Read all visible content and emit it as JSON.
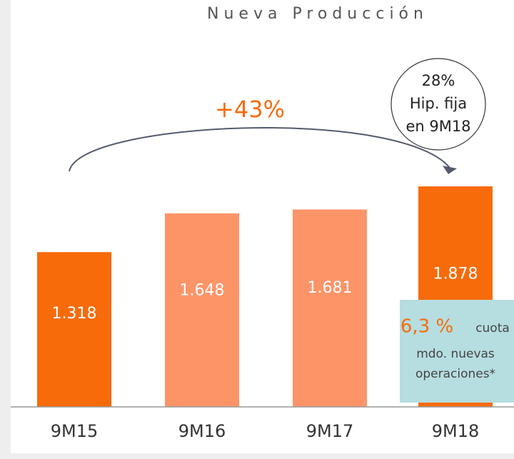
{
  "chart_data": {
    "type": "bar",
    "title": "Nueva Producción",
    "categories": [
      "9M15",
      "9M16",
      "9M17",
      "9M18"
    ],
    "values": [
      1318,
      1648,
      1681,
      1878
    ],
    "value_labels": [
      "1.318",
      "1.648",
      "1.681",
      "1.878"
    ],
    "colors": [
      "#f76b0a",
      "#fd9468",
      "#fd9468",
      "#f76b0a"
    ],
    "ylim": [
      0,
      2000
    ],
    "annotations": {
      "growth": "+43%",
      "callout": [
        "28%",
        "Hip. fija",
        "en 9M18"
      ],
      "market_share": {
        "value": "6,3 %",
        "text": [
          "cuota",
          "mdo. nuevas",
          "operaciones*"
        ]
      }
    }
  }
}
